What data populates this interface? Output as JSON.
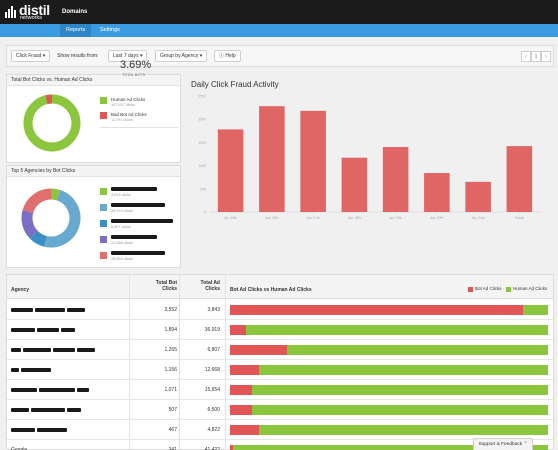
{
  "topbar": {
    "logo_word": "distil",
    "logo_sub": "networks",
    "domains_label": "Domains"
  },
  "subnav": {
    "tabs": [
      {
        "label": "Reports",
        "active": true
      },
      {
        "label": "Settings",
        "active": false
      }
    ]
  },
  "toolbar": {
    "filter_value": "Click Fraud",
    "results_label": "Show results from:",
    "range_value": "Last 7 days",
    "group_value": "Group by Agency",
    "help_label": "Help",
    "pager_prev": "‹",
    "pager_page": "1",
    "pager_next": "›"
  },
  "bot_vs_human": {
    "title": "Total Bot Clicks vs. Human Ad Clicks",
    "human": {
      "label": "Human Ad Clicks",
      "sub": "307,837 clicks",
      "value": 307837,
      "color": "#8cc63f"
    },
    "bot": {
      "label": "Bad Bot Ad Clicks",
      "sub": "11,791 clicks",
      "value": 11791,
      "color": "#e05656"
    },
    "percent": "3.69%",
    "percent_label": "TOTAL BOTS"
  },
  "top_agencies": {
    "title": "Top 5 Agencies by Bot Clicks",
    "items": [
      {
        "sub": "3,843 clicks",
        "value": 3843,
        "color": "#8cc63f"
      },
      {
        "sub": "36,919 clicks",
        "value": 36919,
        "color": "#67a9cf"
      },
      {
        "sub": "6,807 clicks",
        "value": 6807,
        "color": "#3a8fc4"
      },
      {
        "sub": "12,668 clicks",
        "value": 12668,
        "color": "#7b6fc4"
      },
      {
        "sub": "15,654 clicks",
        "value": 15654,
        "color": "#e07070"
      }
    ]
  },
  "chart_data": {
    "type": "bar",
    "title": "Daily Click Fraud Activity",
    "categories": [
      "Apr 15th",
      "Apr 16th",
      "Apr 17th",
      "Apr 18th",
      "Apr 19th",
      "Apr 20th",
      "Apr 21st",
      "Today"
    ],
    "values": [
      1780,
      2280,
      2180,
      1170,
      1400,
      840,
      650,
      1420
    ],
    "ylim": [
      0,
      2500
    ],
    "yticks": [
      "0",
      "500",
      "1000",
      "1500",
      "2000",
      "2500"
    ],
    "color": "#e06666",
    "grid": true
  },
  "table": {
    "headers": {
      "agency": "Agency",
      "bot": "Total Bot Clicks",
      "human": "Total Ad Clicks",
      "bar": "Bot Ad Clicks vs Human Ad Clicks"
    },
    "legend": {
      "bot": "Bot Ad Clicks",
      "human": "Human Ad Clicks",
      "bot_color": "#e05656",
      "human_color": "#8cc63f"
    },
    "rows": [
      {
        "agency": "",
        "bot": "3,552",
        "human": "3,843",
        "bot_frac": 0.92
      },
      {
        "agency": "",
        "bot": "1,894",
        "human": "36,919",
        "bot_frac": 0.05
      },
      {
        "agency": "",
        "bot": "1,265",
        "human": "6,807",
        "bot_frac": 0.18
      },
      {
        "agency": "",
        "bot": "1,156",
        "human": "12,668",
        "bot_frac": 0.09
      },
      {
        "agency": "",
        "bot": "1,071",
        "human": "15,654",
        "bot_frac": 0.07
      },
      {
        "agency": "",
        "bot": "507",
        "human": "6,500",
        "bot_frac": 0.07
      },
      {
        "agency": "",
        "bot": "467",
        "human": "4,822",
        "bot_frac": 0.09
      },
      {
        "agency": "Google",
        "bot": "341",
        "human": "41,422",
        "bot_frac": 0.01
      }
    ]
  },
  "support": {
    "label": "Support & Feedback ⌃"
  }
}
